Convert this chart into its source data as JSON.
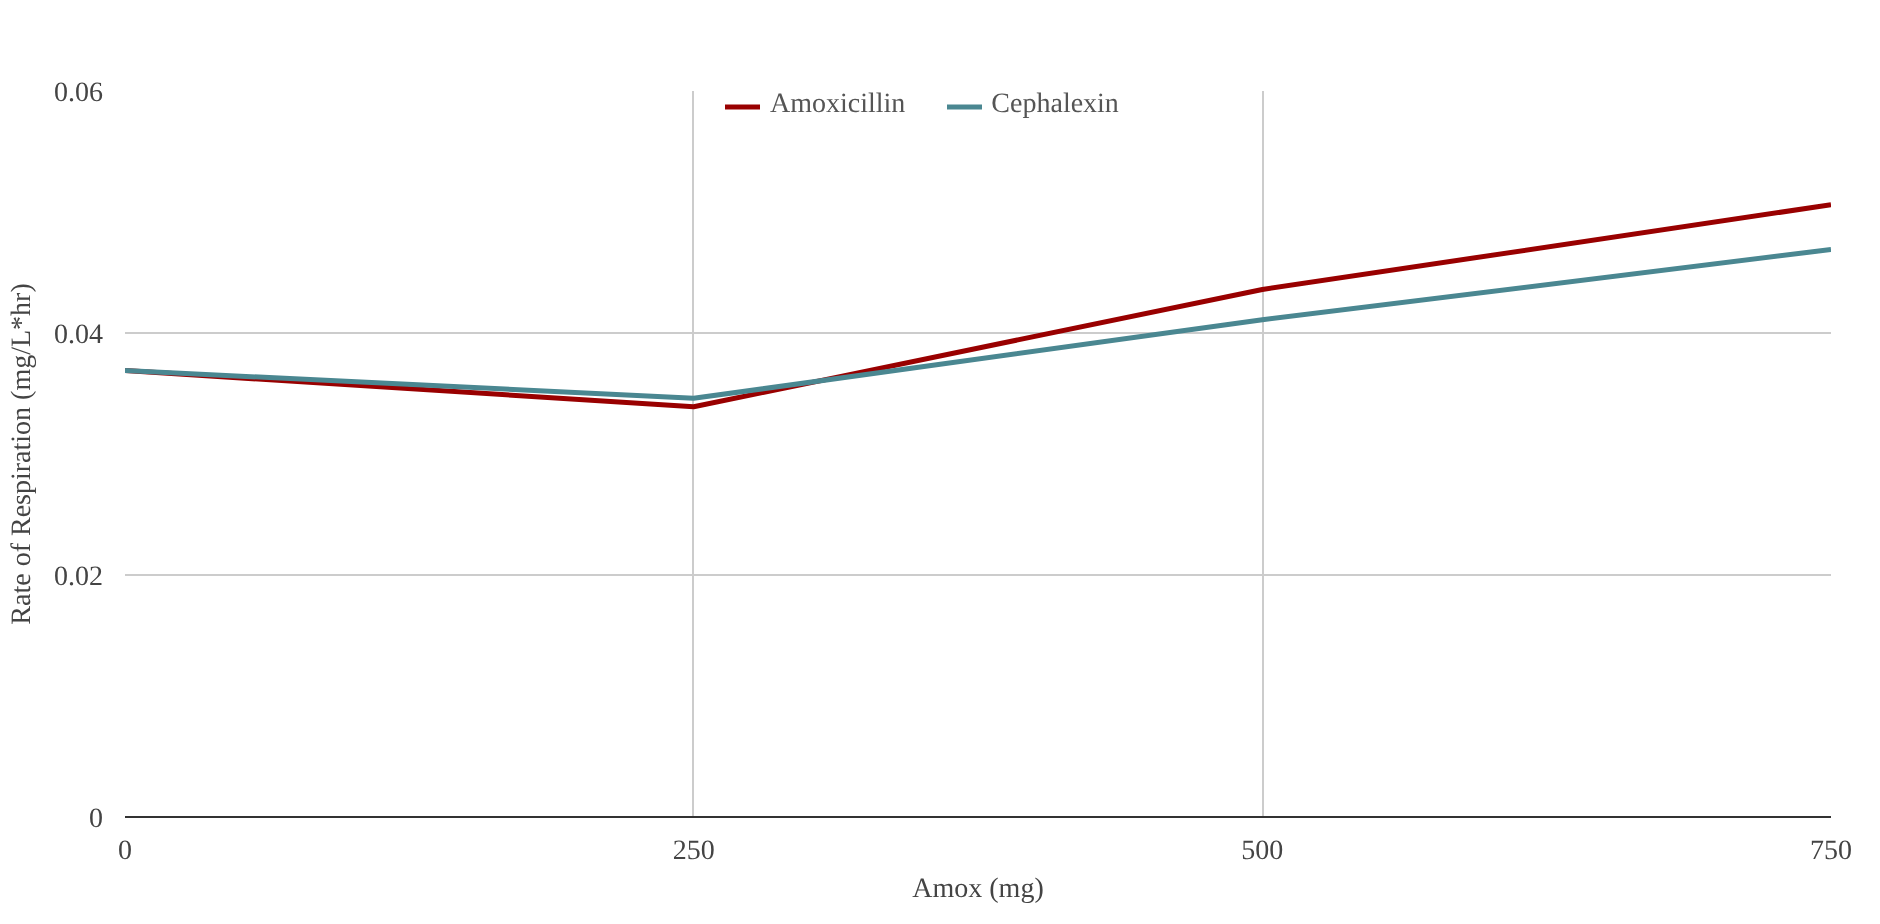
{
  "chart_data": {
    "type": "line",
    "xlabel": "Amox (mg)",
    "ylabel": "Rate of Respiration (mg/L*hr)",
    "x": [
      0,
      250,
      500,
      750
    ],
    "series": [
      {
        "name": "Amoxicillin",
        "color": "#990000",
        "values": [
          0.0369,
          0.0339,
          0.0436,
          0.0506
        ]
      },
      {
        "name": "Cephalexin",
        "color": "#4a8791",
        "values": [
          0.0369,
          0.0346,
          0.0411,
          0.0469
        ]
      }
    ],
    "xlim": [
      0,
      750
    ],
    "ylim": [
      0,
      0.06
    ],
    "xticks": [
      0,
      250,
      500,
      750
    ],
    "yticks": [
      0,
      0.02,
      0.04,
      0.06
    ],
    "grid": true,
    "legend": "top",
    "marker": "none",
    "line_style": "solid"
  }
}
